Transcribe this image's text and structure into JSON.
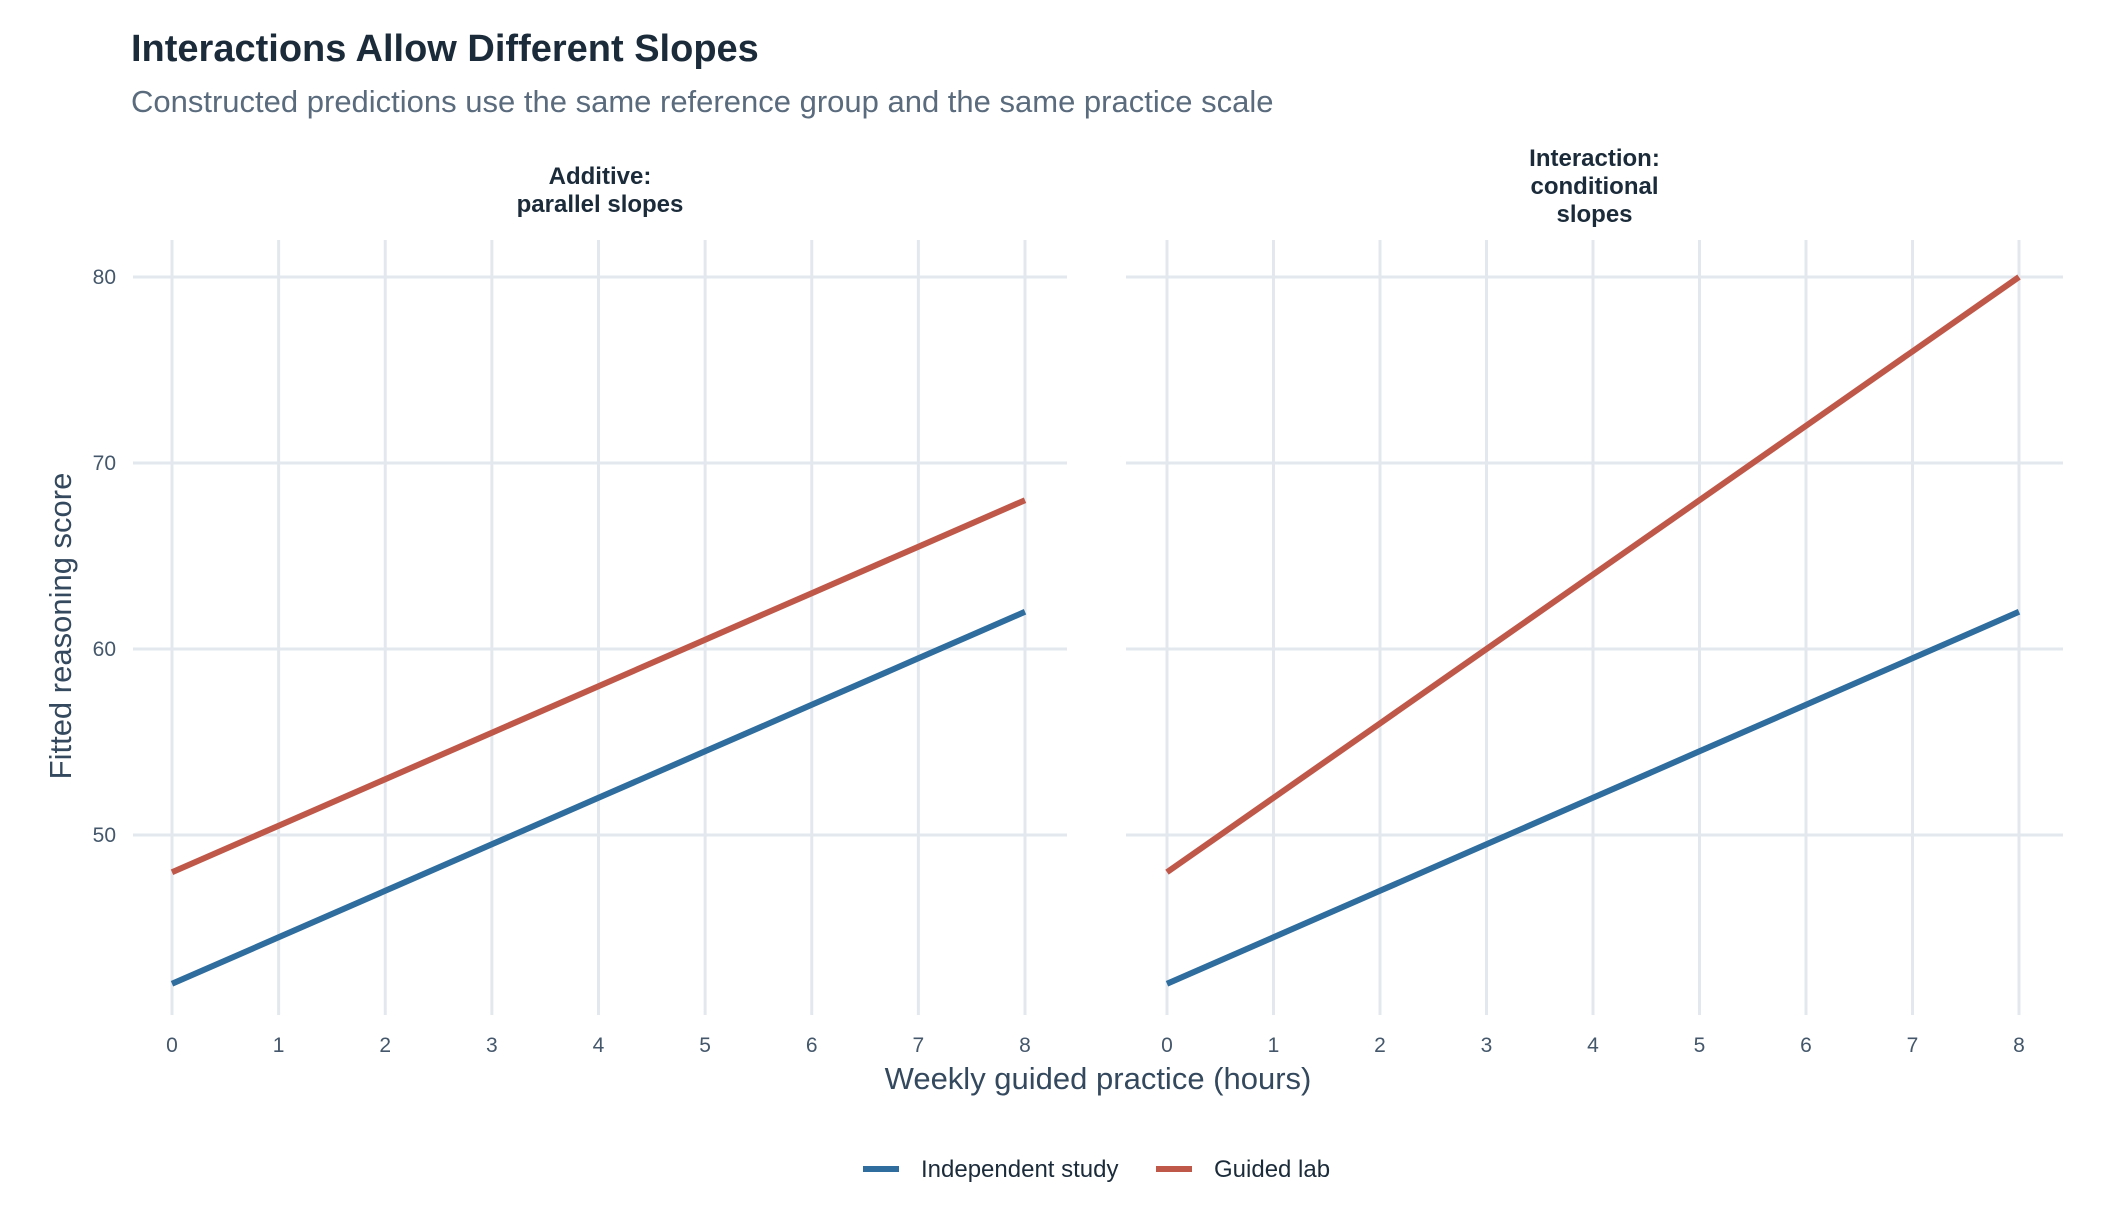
{
  "title": "Interactions Allow Different Slopes",
  "subtitle": "Constructed predictions use the same reference group and the same practice scale",
  "xlabel": "Weekly guided practice (hours)",
  "ylabel": "Fitted reasoning score",
  "colors": {
    "independent": "#2e6d9e",
    "guided": "#c0584a",
    "grid": "#e3e8ee"
  },
  "legend": [
    {
      "name": "Independent study",
      "color": "#2e6d9e"
    },
    {
      "name": "Guided lab",
      "color": "#c0584a"
    }
  ],
  "chart_data": [
    {
      "type": "line",
      "panel_title": [
        "Additive:",
        "parallel slopes"
      ],
      "x": [
        0,
        1,
        2,
        3,
        4,
        5,
        6,
        7,
        8
      ],
      "xlim": [
        0,
        8
      ],
      "ylim": [
        40,
        80
      ],
      "yticks": [
        50,
        60,
        70,
        80
      ],
      "xlabel": "Weekly guided practice (hours)",
      "ylabel": "Fitted reasoning score",
      "grid": true,
      "legend_position": "bottom",
      "series": [
        {
          "name": "Independent study",
          "values": [
            42,
            44.5,
            47,
            49.5,
            52,
            54.5,
            57,
            59.5,
            62
          ]
        },
        {
          "name": "Guided lab",
          "values": [
            48,
            50.5,
            53,
            55.5,
            58,
            60.5,
            63,
            65.5,
            68
          ]
        }
      ]
    },
    {
      "type": "line",
      "panel_title": [
        "Interaction:",
        "conditional",
        "slopes"
      ],
      "x": [
        0,
        1,
        2,
        3,
        4,
        5,
        6,
        7,
        8
      ],
      "xlim": [
        0,
        8
      ],
      "ylim": [
        40,
        80
      ],
      "yticks": [
        50,
        60,
        70,
        80
      ],
      "xlabel": "Weekly guided practice (hours)",
      "ylabel": "Fitted reasoning score",
      "grid": true,
      "legend_position": "bottom",
      "series": [
        {
          "name": "Independent study",
          "values": [
            42,
            44.5,
            47,
            49.5,
            52,
            54.5,
            57,
            59.5,
            62
          ]
        },
        {
          "name": "Guided lab",
          "values": [
            48,
            52,
            56,
            60,
            64,
            68,
            72,
            76,
            80
          ]
        }
      ]
    }
  ]
}
